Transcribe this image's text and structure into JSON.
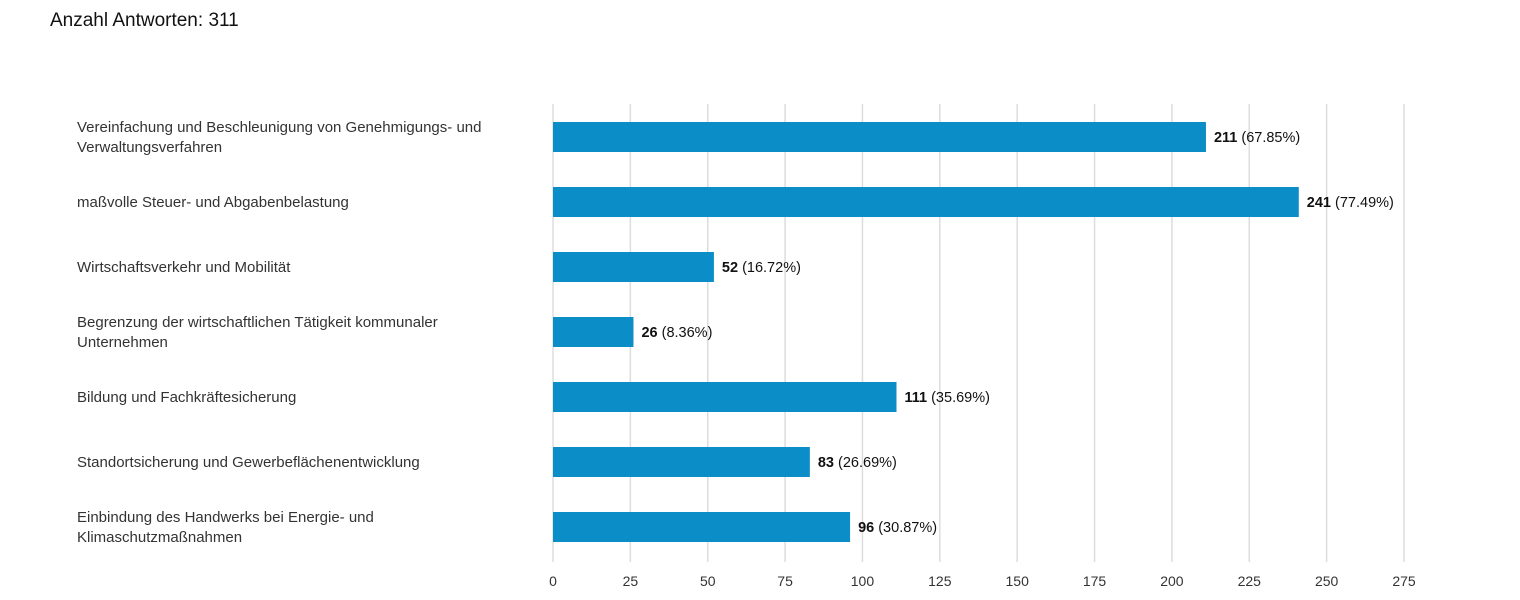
{
  "header": {
    "label": "Anzahl Antworten:",
    "count": "311"
  },
  "chart_data": {
    "type": "bar",
    "orientation": "horizontal",
    "categories": [
      [
        "Vereinfachung und Beschleunigung von Genehmigungs- und",
        "Verwaltungsverfahren"
      ],
      [
        "maßvolle Steuer- und Abgabenbelastung"
      ],
      [
        "Wirtschaftsverkehr und Mobilität"
      ],
      [
        "Begrenzung der wirtschaftlichen Tätigkeit kommunaler",
        "Unternehmen"
      ],
      [
        "Bildung und Fachkräftesicherung"
      ],
      [
        "Standortsicherung und Gewerbeflächenentwicklung"
      ],
      [
        "Einbindung des Handwerks bei Energie- und",
        "Klimaschutzmaßnahmen"
      ]
    ],
    "values": [
      211,
      241,
      52,
      26,
      111,
      83,
      96
    ],
    "percent_labels": [
      "(67.85%)",
      "(77.49%)",
      "(16.72%)",
      "(8.36%)",
      "(35.69%)",
      "(26.69%)",
      "(30.87%)"
    ],
    "xlim": [
      0,
      275
    ],
    "xticks": [
      0,
      25,
      50,
      75,
      100,
      125,
      150,
      175,
      200,
      225,
      250,
      275
    ],
    "grid": true,
    "bar_color": "#0b8dc8",
    "grid_color": "#dddddd"
  }
}
